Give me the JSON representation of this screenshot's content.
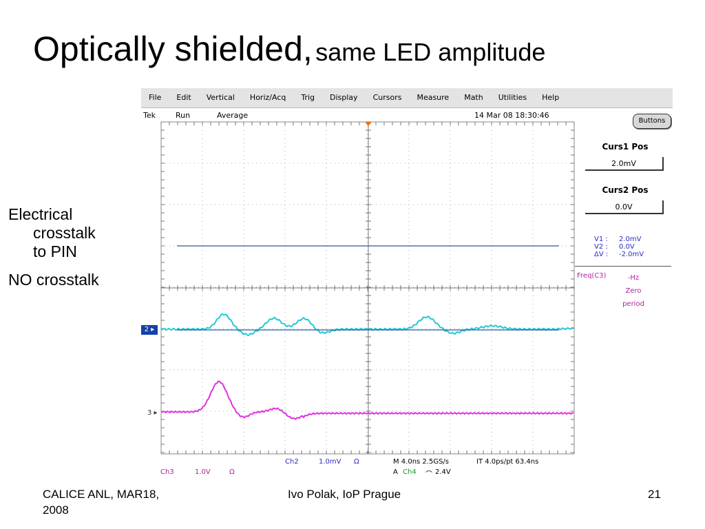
{
  "slide": {
    "title_main": "Optically shielded,",
    "title_sub": "same LED amplitude",
    "bullets": [
      {
        "line1": "Electrical",
        "line2": "crosstalk",
        "line3": "to PIN"
      },
      {
        "line1": "NO crosstalk"
      }
    ],
    "footer": {
      "left_line1": "CALICE ANL, MAR18,",
      "left_line2": "2008",
      "center": "Ivo Polak, IoP Prague",
      "page": "21"
    }
  },
  "scope": {
    "menu": [
      "File",
      "Edit",
      "Vertical",
      "Horiz/Acq",
      "Trig",
      "Display",
      "Cursors",
      "Measure",
      "Math",
      "Utilities",
      "Help"
    ],
    "status": {
      "brand": "Tek",
      "run": "Run",
      "mode": "Average",
      "datetime": "14 Mar 08 18:30:46"
    },
    "buttons_label": "Buttons",
    "curs1": {
      "label": "Curs1 Pos",
      "value": "2.0mV"
    },
    "curs2": {
      "label": "Curs2 Pos",
      "value": "0.0V"
    },
    "readout": {
      "v1_label": "V1 :",
      "v1_value": "2.0mV",
      "v2_label": "V2 :",
      "v2_value": "0.0V",
      "dv_label": "ΔV :",
      "dv_value": "-2.0mV"
    },
    "freq": {
      "label": "Freq(C3)",
      "value": "-Hz",
      "note1": "Zero",
      "note2": "period"
    },
    "bottom": {
      "ch3_label": "Ch3",
      "ch3_scale": "1.0V",
      "ch3_imp": "Ω",
      "ch2_label": "Ch2",
      "ch2_scale": "1.0mV",
      "ch2_imp": "Ω",
      "timebase": "M 4.0ns 2.5GS/s",
      "it": "IT 4.0ps/pt 63.4ns",
      "trig_a": "A",
      "trig_ch": "Ch4",
      "trig_slope": "⌒",
      "trig_level": "2.4V"
    },
    "markers": {
      "ch2": "2",
      "ch3": "3"
    },
    "colors": {
      "ch2_trace": "#22c8d8",
      "ch3_trace": "#e030e0",
      "cursor_line": "#1e5aa0",
      "ch2_marker": "#1540a8",
      "trigger_marker": "#f07010"
    }
  }
}
